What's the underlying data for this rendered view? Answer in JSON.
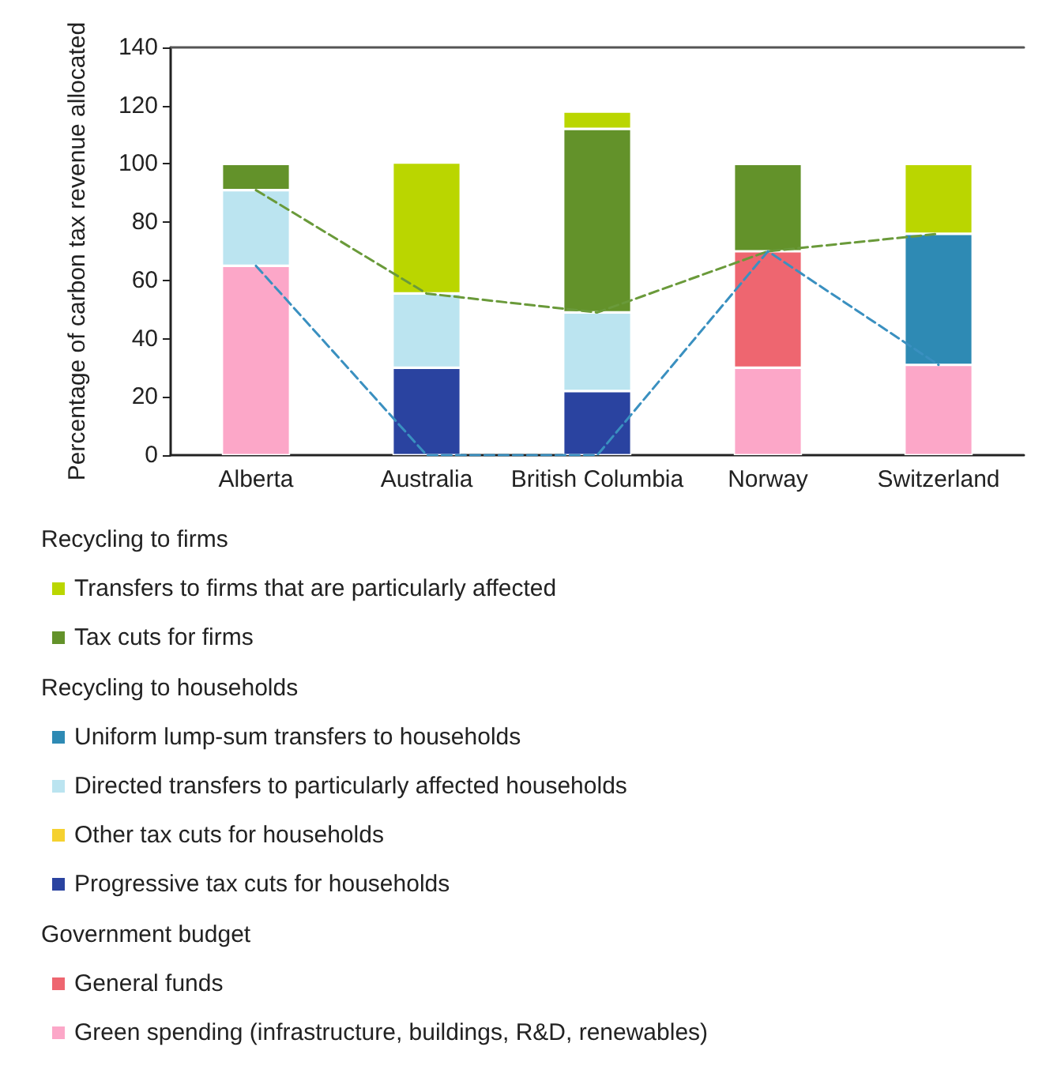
{
  "chart_data": {
    "type": "bar",
    "stacked": true,
    "ylabel": "Percentage of carbon tax revenue allocated",
    "categories": [
      "Alberta",
      "Australia",
      "British Columbia",
      "Norway",
      "Switzerland"
    ],
    "ylim": [
      0,
      140
    ],
    "yticks": [
      0,
      20,
      40,
      60,
      80,
      100,
      120,
      140
    ],
    "grid": false,
    "legend": "bottom",
    "annotations": [
      "Recycling to firms",
      "Recycling to households",
      "Government budget"
    ],
    "series": [
      {
        "name": "Green spending (infrastructure, buildings, R&D, renewables)",
        "color": "#fca7c8",
        "values": [
          65,
          null,
          null,
          30,
          31
        ]
      },
      {
        "name": "General funds",
        "color": "#ee6670",
        "values": [
          null,
          null,
          null,
          40,
          null
        ]
      },
      {
        "name": "Progressive tax cuts for households",
        "color": "#2a43a0",
        "values": [
          null,
          30,
          22,
          null,
          null
        ]
      },
      {
        "name": "Other tax cuts for households",
        "color": "#f5d130",
        "values": [
          null,
          null,
          null,
          null,
          null
        ]
      },
      {
        "name": "Directed transfers to particularly affected households",
        "color": "#bbe4f0",
        "values": [
          26,
          25.5,
          27,
          null,
          null
        ]
      },
      {
        "name": "Uniform lump-sum transfers to households",
        "color": "#2e8ab4",
        "values": [
          null,
          null,
          null,
          null,
          45
        ]
      },
      {
        "name": "Tax cuts for firms",
        "color": "#63922a",
        "values": [
          9,
          null,
          63,
          30,
          null
        ]
      },
      {
        "name": "Transfers to firms that are particularly affected",
        "color": "#bad600",
        "values": [
          null,
          45,
          6,
          null,
          24
        ]
      },
      {
        "type": "line",
        "line_style": "dashed",
        "marker": "none",
        "color": "#6a9a3a",
        "values": [
          91,
          55.5,
          49,
          70,
          76
        ]
      },
      {
        "type": "line",
        "line_style": "dashed",
        "marker": "none",
        "color": "#3a90c0",
        "values": [
          65,
          0,
          0,
          70,
          31
        ]
      }
    ]
  }
}
